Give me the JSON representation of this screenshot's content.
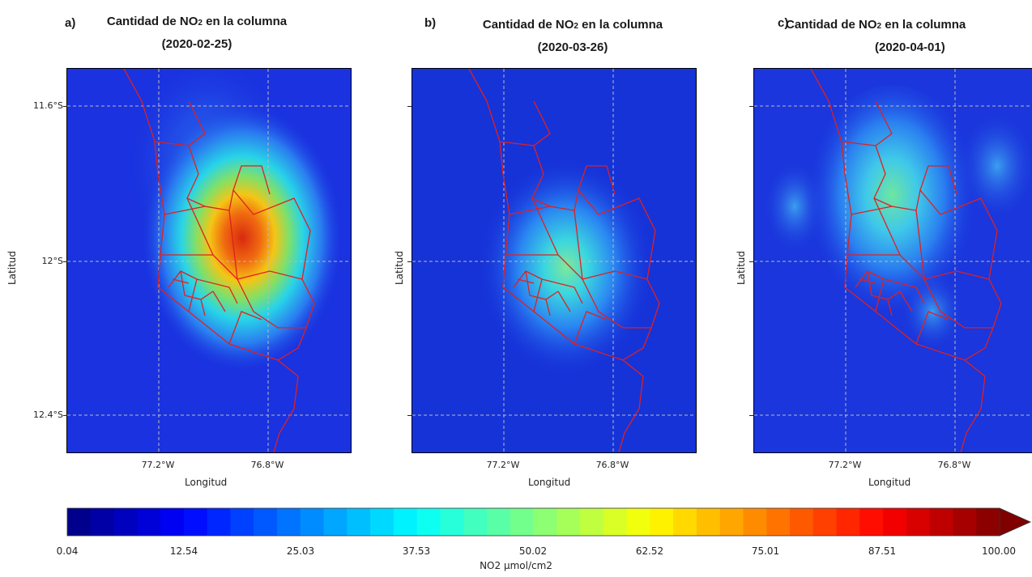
{
  "panels": [
    {
      "letter": "a)",
      "title_prefix": "Cantidad de NO",
      "title_sub": "2",
      "title_suffix": " en la columna",
      "date": "(2020-02-25)"
    },
    {
      "letter": "b)",
      "title_prefix": "Cantidad de NO",
      "title_sub": "2",
      "title_suffix": " en la columna",
      "date": "(2020-03-26)"
    },
    {
      "letter": "c)",
      "title_prefix": "Cantidad de NO",
      "title_sub": "2",
      "title_suffix": " en la columna",
      "date": "(2020-04-01)"
    }
  ],
  "axes": {
    "xlabel": "Longitud",
    "ylabel": "Latitud",
    "yticks": [
      "11.6°S",
      "12°S",
      "12.4°S"
    ],
    "xticks": [
      "77.2°W",
      "76.8°W"
    ]
  },
  "colorbar": {
    "label": "NO2 µmol/cm2",
    "ticks": [
      "0.04",
      "12.54",
      "25.03",
      "37.53",
      "50.02",
      "62.52",
      "75.01",
      "87.51",
      "100.00"
    ],
    "range": [
      0.04,
      100.0
    ],
    "colormap": "jet",
    "extend": "max"
  },
  "colors": {
    "boundary": "#e02020",
    "background_field": "#1a32e0"
  }
}
